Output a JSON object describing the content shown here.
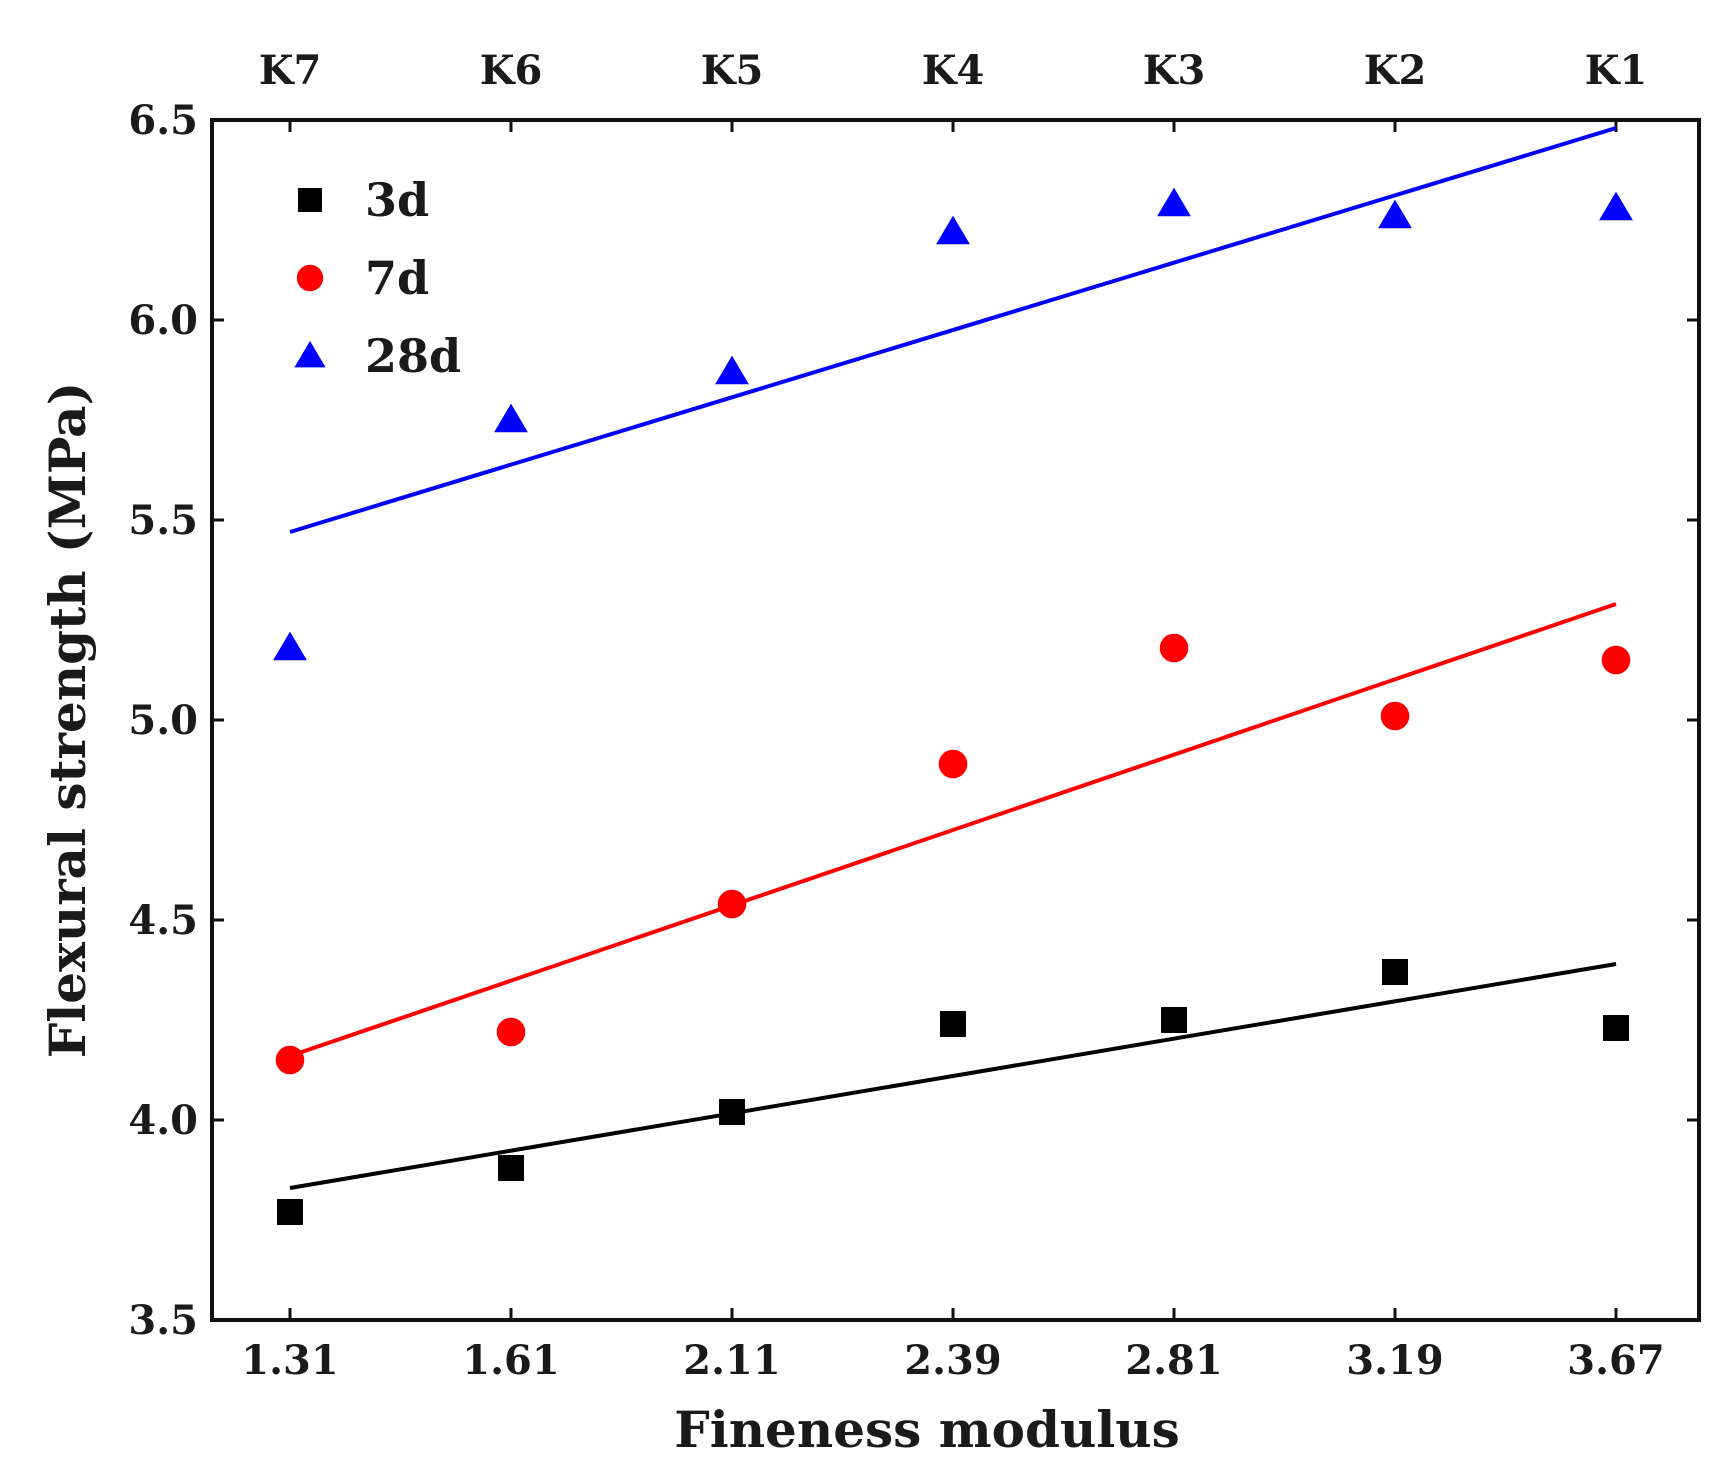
{
  "chart_data": {
    "type": "scatter",
    "title": "",
    "xlabel": "Fineness modulus",
    "ylabel": "Flexural strength (MPa)",
    "ylim": [
      3.5,
      6.5
    ],
    "y_ticks": [
      "3.5",
      "4.0",
      "4.5",
      "5.0",
      "5.5",
      "6.0",
      "6.5"
    ],
    "x_ticks": [
      "1.31",
      "1.61",
      "2.11",
      "2.39",
      "2.81",
      "3.19",
      "3.67"
    ],
    "top_ticks": [
      "K7",
      "K6",
      "K5",
      "K4",
      "K3",
      "K2",
      "K1"
    ],
    "legend_position": "top-left",
    "grid": false,
    "series": [
      {
        "name": "3d",
        "marker": "square",
        "color": "#000000",
        "values": [
          3.77,
          3.88,
          4.02,
          4.24,
          4.25,
          4.37,
          4.23
        ],
        "fit": [
          3.83,
          4.39
        ]
      },
      {
        "name": "7d",
        "marker": "circle",
        "color": "#ff0000",
        "values": [
          4.15,
          4.22,
          4.54,
          4.89,
          5.18,
          5.01,
          5.15
        ],
        "fit": [
          4.16,
          5.29
        ]
      },
      {
        "name": "28d",
        "marker": "triangle",
        "color": "#0000ff",
        "values": [
          5.18,
          5.75,
          5.87,
          6.22,
          6.29,
          6.26,
          6.28
        ],
        "fit": [
          5.47,
          6.48
        ]
      }
    ]
  }
}
